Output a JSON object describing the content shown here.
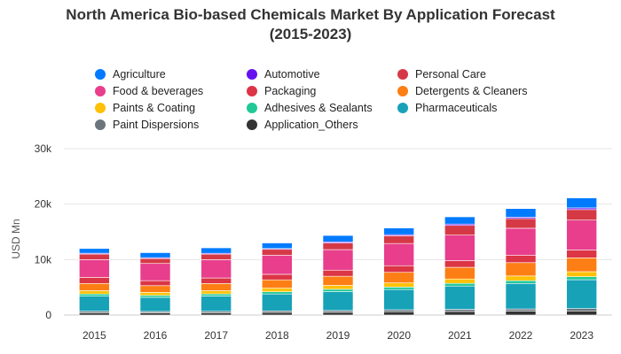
{
  "chart_data": {
    "type": "bar",
    "stacked": true,
    "title_lines": [
      "North America Bio-based Chemicals Market By Application Forecast",
      "(2015-2023)"
    ],
    "ylabel": "USD Mn",
    "xlabel": "",
    "ylim": [
      0,
      30000
    ],
    "y_ticks": [
      0,
      10000,
      20000,
      30000
    ],
    "y_tick_labels": [
      "0",
      "10k",
      "20k",
      "30k"
    ],
    "grid": "horizontal",
    "legend_position": "top",
    "categories": [
      "2015",
      "2016",
      "2017",
      "2018",
      "2019",
      "2020",
      "2021",
      "2022",
      "2023"
    ],
    "series": [
      {
        "name": "Application_Others",
        "color": "#333333",
        "values": [
          400,
          400,
          400,
          450,
          500,
          600,
          650,
          700,
          750
        ]
      },
      {
        "name": "Paint Dispersions",
        "color": "#6c757d",
        "values": [
          300,
          250,
          280,
          300,
          320,
          350,
          380,
          400,
          420
        ]
      },
      {
        "name": "Pharmaceuticals",
        "color": "#17a2b8",
        "values": [
          2700,
          2550,
          2750,
          3050,
          3400,
          3650,
          4200,
          4600,
          5200
        ]
      },
      {
        "name": "Adhesives & Sealants",
        "color": "#20c997",
        "values": [
          400,
          350,
          380,
          400,
          430,
          450,
          480,
          500,
          550
        ]
      },
      {
        "name": "Paints & Coating",
        "color": "#ffc107",
        "values": [
          600,
          550,
          580,
          650,
          700,
          750,
          800,
          850,
          900
        ]
      },
      {
        "name": "Detergents & Cleaners",
        "color": "#fd7e14",
        "values": [
          1300,
          1200,
          1300,
          1500,
          1650,
          1900,
          2100,
          2400,
          2500
        ]
      },
      {
        "name": "Packaging",
        "color": "#dc3545",
        "values": [
          1100,
          900,
          1000,
          1000,
          1100,
          1200,
          1200,
          1300,
          1400
        ]
      },
      {
        "name": "Food & beverages",
        "color": "#e83e8c",
        "values": [
          3200,
          3100,
          3300,
          3450,
          3700,
          4000,
          4600,
          4900,
          5400
        ]
      },
      {
        "name": "Personal Care",
        "color": "#d63946",
        "values": [
          1000,
          900,
          1000,
          1050,
          1200,
          1400,
          1750,
          1750,
          1900
        ]
      },
      {
        "name": "Automotive",
        "color": "#6610f2",
        "values": [
          150,
          150,
          150,
          150,
          200,
          200,
          250,
          250,
          300
        ]
      },
      {
        "name": "Agriculture",
        "color": "#007bff",
        "values": [
          850,
          900,
          980,
          1000,
          1150,
          1200,
          1300,
          1550,
          1800
        ]
      }
    ],
    "legend_order": [
      "Agriculture",
      "Automotive",
      "Personal Care",
      "Food & beverages",
      "Packaging",
      "Detergents & Cleaners",
      "Paints & Coating",
      "Adhesives & Sealants",
      "Pharmaceuticals",
      "Paint Dispersions",
      "Application_Others"
    ]
  }
}
